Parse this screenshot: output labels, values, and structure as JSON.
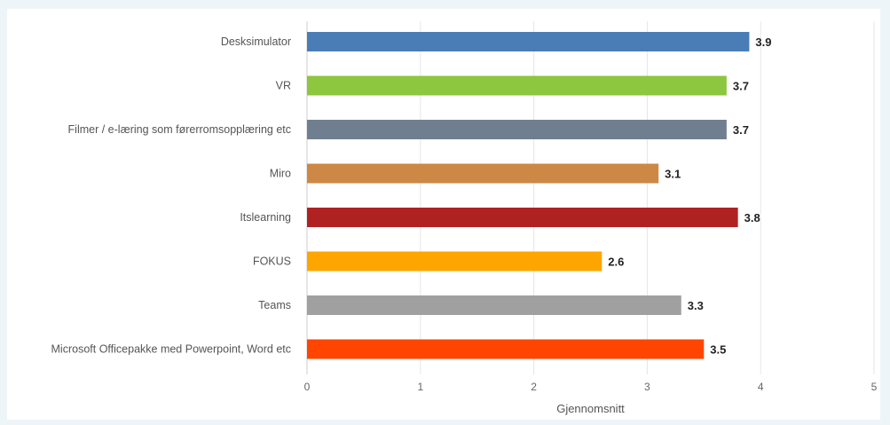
{
  "chart_data": {
    "type": "bar",
    "orientation": "horizontal",
    "categories": [
      "Desksimulator",
      "VR",
      "Filmer / e-læring som førerromsopplæring etc",
      "Miro",
      "Itslearning",
      "FOKUS",
      "Teams",
      "Microsoft Officepakke med Powerpoint, Word etc"
    ],
    "values": [
      3.9,
      3.7,
      3.7,
      3.1,
      3.8,
      2.6,
      3.3,
      3.5
    ],
    "value_labels": [
      "3.9",
      "3.7",
      "3.7",
      "3.1",
      "3.8",
      "2.6",
      "3.3",
      "3.5"
    ],
    "colors": [
      "#4a7db5",
      "#8dc63f",
      "#6f7f8f",
      "#cc8844",
      "#b02222",
      "#ffa500",
      "#a0a0a0",
      "#ff4500"
    ],
    "xlabel": "Gjennomsnitt",
    "xlim": [
      0,
      5
    ],
    "xticks": [
      "0",
      "1",
      "2",
      "3",
      "4",
      "5"
    ],
    "grid": true,
    "legend": "none"
  }
}
